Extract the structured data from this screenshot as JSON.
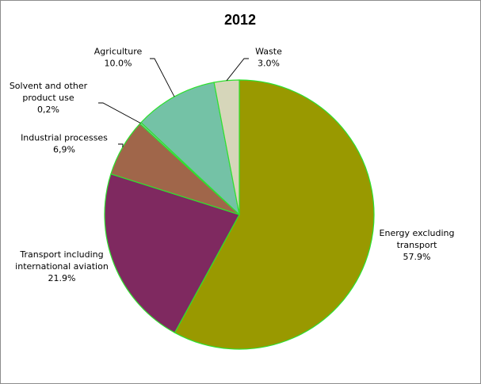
{
  "chart_data": {
    "type": "pie",
    "title": "2012",
    "slices": [
      {
        "label_lines": [
          "Energy excluding",
          "transport"
        ],
        "value_label": "57.9%",
        "value": 57.9,
        "color": "#999900"
      },
      {
        "label_lines": [
          "Transport including",
          "international aviation"
        ],
        "value_label": "21.9%",
        "value": 21.9,
        "color": "#7f2960"
      },
      {
        "label_lines": [
          "Industrial processes"
        ],
        "value_label": "6,9%",
        "value": 6.9,
        "color": "#a0664a"
      },
      {
        "label_lines": [
          "Solvent and other",
          "product use"
        ],
        "value_label": "0,2%",
        "value": 0.2,
        "color": "#8fc7b5"
      },
      {
        "label_lines": [
          "Agriculture"
        ],
        "value_label": "10.0%",
        "value": 10.0,
        "color": "#74c2a6"
      },
      {
        "label_lines": [
          "Waste"
        ],
        "value_label": "3.0%",
        "value": 3.0,
        "color": "#d6d6ba"
      }
    ]
  }
}
